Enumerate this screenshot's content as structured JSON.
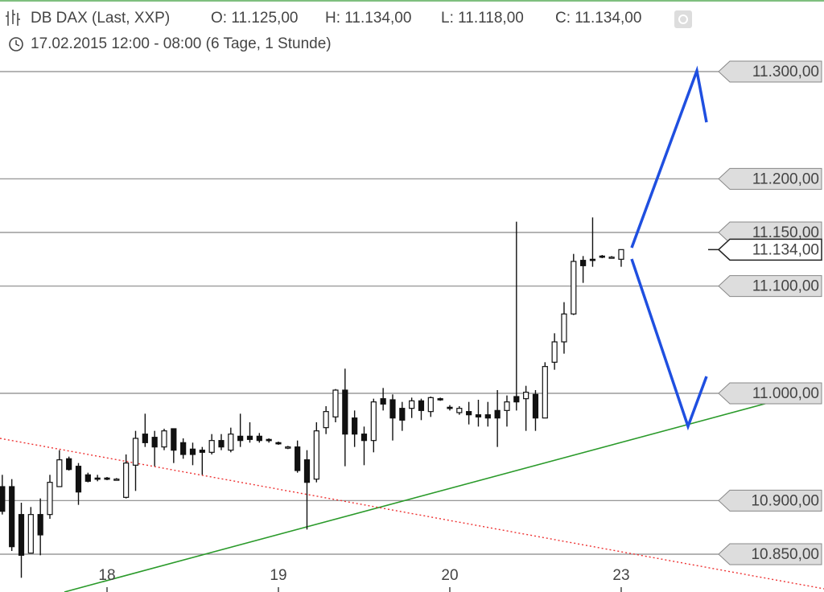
{
  "header": {
    "instrument": "DB DAX (Last, XXP)",
    "fields": [
      "O: 11.125,00",
      "H: 11.134,00",
      "L: 11.118,00",
      "C: 11.134,00"
    ],
    "period": "17.02.2015 12:00 - 08:00 (6 Tage, 1 Stunde)"
  },
  "chart_data": {
    "type": "candlestick",
    "x": [
      0,
      1,
      2,
      3,
      4,
      5,
      6,
      7,
      8,
      9,
      10,
      11,
      12,
      13,
      14,
      15,
      16,
      17,
      18,
      19,
      20,
      21,
      22,
      23,
      24,
      25,
      26,
      27,
      28,
      29,
      30,
      31,
      32,
      33,
      34,
      35,
      36,
      37,
      38,
      39,
      40,
      41,
      42,
      43,
      44,
      45,
      46,
      47,
      48,
      49,
      50,
      51,
      52,
      53,
      54,
      55,
      56,
      57,
      58,
      59,
      60,
      61,
      62,
      63,
      64,
      65
    ],
    "open": [
      10913,
      10913,
      10887,
      10851,
      10887,
      10887,
      10913,
      10939,
      10932,
      10924,
      10921,
      10921,
      10920,
      10903,
      10933,
      10962,
      10959,
      10950,
      10967,
      10954,
      10948,
      10947,
      10945,
      10956,
      10947,
      10960,
      10960,
      10960,
      10957,
      10954,
      10950,
      10950,
      10938,
      10920,
      10968,
      10978,
      11003,
      10977,
      10962,
      10956,
      10995,
      10994,
      10986,
      10986,
      10993,
      10983,
      10995,
      10987,
      10982,
      10983,
      10980,
      10980,
      10984,
      10984,
      10997,
      10995,
      10999,
      10977,
      11029,
      11048,
      11074,
      11124,
      11125,
      11128,
      11127,
      11125
    ],
    "high": [
      10924,
      10920,
      10898,
      10894,
      10902,
      10924,
      10947,
      10941,
      10935,
      10926,
      10924,
      10922,
      10921,
      10943,
      10965,
      10981,
      10965,
      10967,
      10967,
      10958,
      10954,
      10950,
      10962,
      10962,
      10968,
      10981,
      10973,
      10963,
      10958,
      10955,
      10951,
      10956,
      10947,
      10973,
      10988,
      11004,
      11023,
      10984,
      10969,
      10995,
      11005,
      10999,
      10992,
      10996,
      10995,
      10997,
      10996,
      10989,
      10988,
      10992,
      10994,
      10992,
      11003,
      10998,
      11160,
      11007,
      11003,
      11029,
      11056,
      11085,
      11130,
      11128,
      11164,
      11129,
      11128,
      11134
    ],
    "low": [
      10887,
      10853,
      10828,
      10851,
      10849,
      10883,
      10913,
      10928,
      10896,
      10917,
      10918,
      10919,
      10919,
      10902,
      10909,
      10950,
      10932,
      10947,
      10935,
      10939,
      10933,
      10924,
      10943,
      10947,
      10945,
      10950,
      10954,
      10954,
      10954,
      10952,
      10948,
      10926,
      10873,
      10917,
      10962,
      10973,
      10932,
      10950,
      10933,
      10945,
      10984,
      10956,
      10965,
      10977,
      10975,
      10978,
      10993,
      10984,
      10980,
      10971,
      10969,
      10969,
      10950,
      10969,
      10984,
      10965,
      10965,
      10977,
      11022,
      11037,
      11073,
      11103,
      11118,
      11126,
      11126,
      11118
    ],
    "close": [
      10890,
      10857,
      10849,
      10887,
      10868,
      10917,
      10938,
      10929,
      10908,
      10918,
      10920,
      10920,
      10920,
      10935,
      10958,
      10954,
      10950,
      10965,
      10947,
      10943,
      10943,
      10945,
      10956,
      10950,
      10962,
      10956,
      10957,
      10956,
      10956,
      10953,
      10950,
      10928,
      10917,
      10965,
      10983,
      11003,
      10962,
      10962,
      10956,
      10992,
      10990,
      10977,
      10975,
      10993,
      10984,
      10996,
      10994,
      10986,
      10986,
      10980,
      10978,
      10977,
      10977,
      10992,
      10992,
      11001,
      10977,
      11025,
      11048,
      11074,
      11123,
      11119,
      11124,
      11127,
      11127,
      11134
    ],
    "xlim": [
      -0.24,
      86.3
    ],
    "xticks": [
      {
        "value": 11,
        "label": "18"
      },
      {
        "value": 29,
        "label": "19"
      },
      {
        "value": 47,
        "label": "20"
      },
      {
        "value": 65,
        "label": "23"
      }
    ],
    "ylim": [
      10814.75,
      11366.75
    ],
    "yticks": [
      {
        "value": 11300,
        "label": "11.300,00"
      },
      {
        "value": 11200,
        "label": "11.200,00"
      },
      {
        "value": 11150,
        "label": "11.150,00"
      },
      {
        "value": 11100,
        "label": "11.100,00"
      },
      {
        "value": 11000,
        "label": "11.000,00"
      },
      {
        "value": 10900,
        "label": "10.900,00"
      },
      {
        "value": 10850,
        "label": "10.850,00"
      }
    ],
    "last_price": {
      "value": 11134,
      "label": "11.134,00"
    },
    "grid": true
  }
}
